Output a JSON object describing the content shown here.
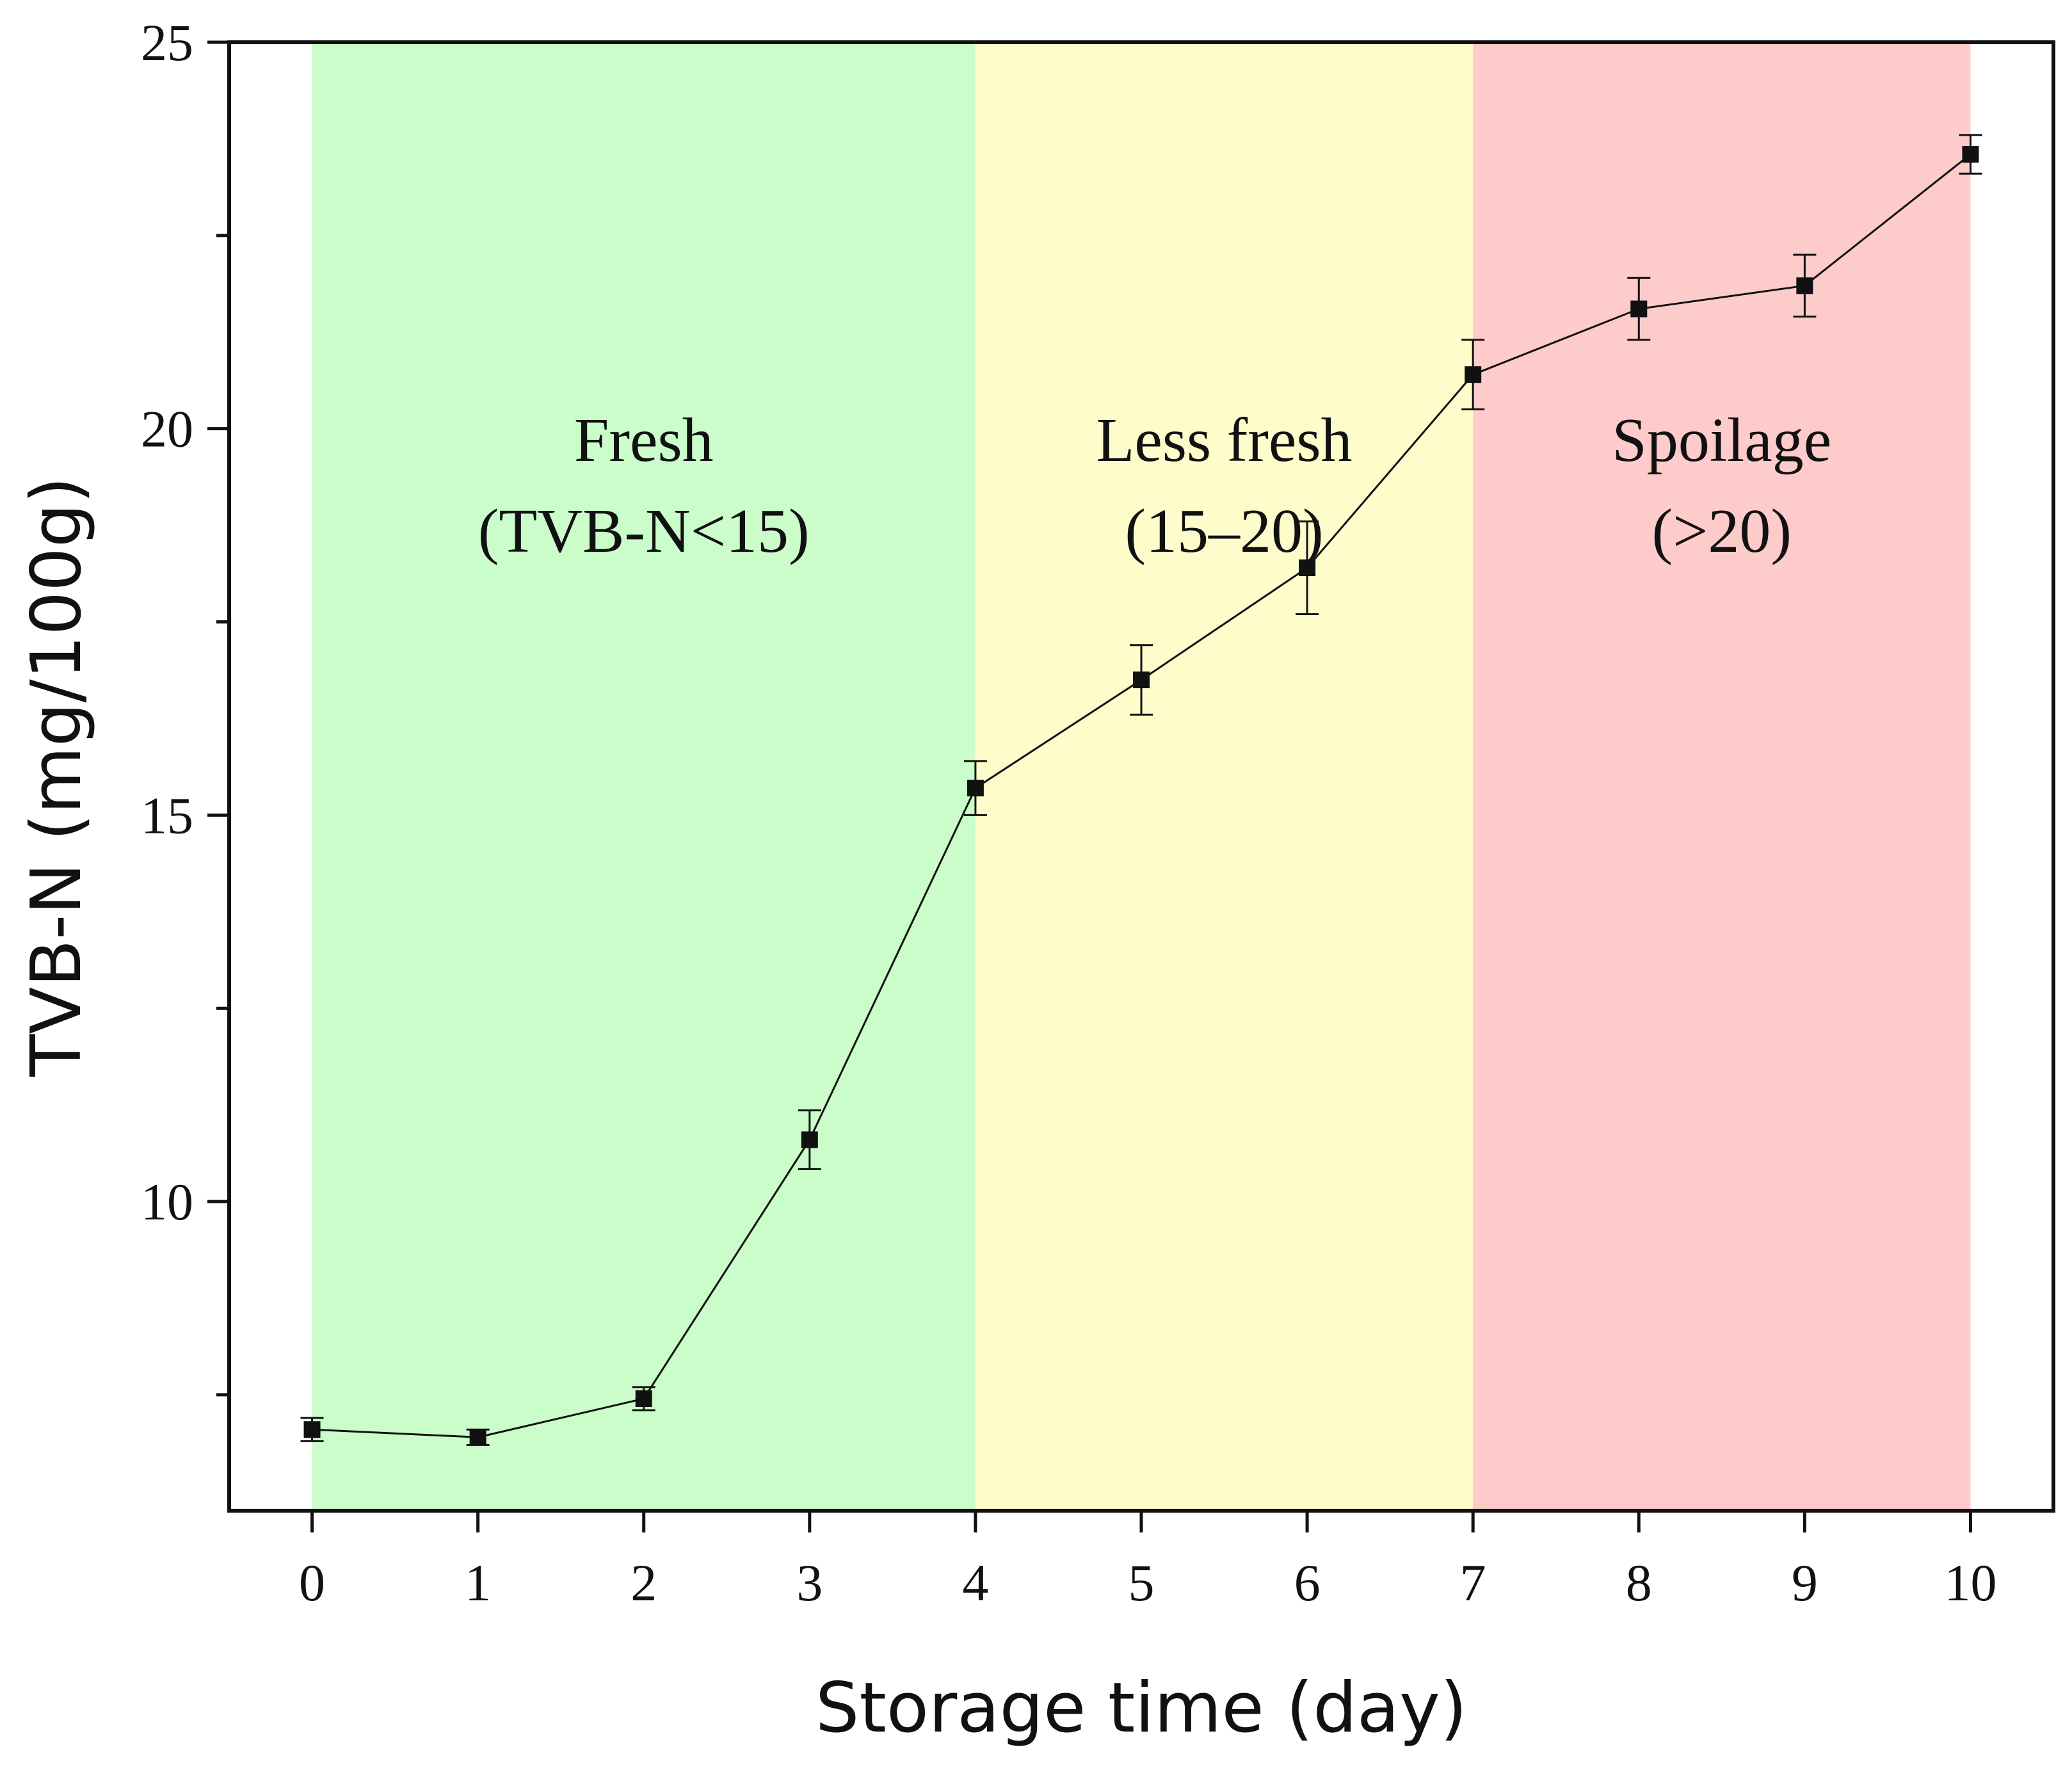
{
  "chart_data": {
    "type": "line",
    "xlabel": "Storage time (day)",
    "ylabel": "TVB-N (mg/100g)",
    "xlim": [
      -0.5,
      10.5
    ],
    "ylim": [
      6,
      25
    ],
    "x_ticks": [
      0,
      1,
      2,
      3,
      4,
      5,
      6,
      7,
      8,
      9,
      10
    ],
    "y_ticks": [
      10,
      15,
      20,
      25
    ],
    "y_minor_ticks": [
      7.5,
      12.5,
      17.5,
      22.5
    ],
    "grid": false,
    "series": [
      {
        "x": [
          0,
          1,
          2,
          3,
          4,
          5,
          6,
          7,
          8,
          9,
          10
        ],
        "y": [
          7.05,
          6.95,
          7.45,
          10.8,
          15.35,
          16.75,
          18.2,
          20.7,
          21.55,
          21.85,
          23.55
        ],
        "error": [
          0.15,
          0.1,
          0.15,
          0.38,
          0.35,
          0.45,
          0.6,
          0.45,
          0.4,
          0.4,
          0.25
        ],
        "marker": "square",
        "color": "#111111"
      }
    ],
    "regions": [
      {
        "label": "Fresh",
        "sublabel": "(TVB-N<15)",
        "x_start": 0,
        "x_end": 4,
        "color": "#cbfdcb"
      },
      {
        "label": "Less fresh",
        "sublabel": "(15–20)",
        "x_start": 4,
        "x_end": 7,
        "color": "#fefccb"
      },
      {
        "label": "Spoilage",
        "sublabel": "(>20)",
        "x_start": 7,
        "x_end": 10,
        "color": "#fecbcb"
      }
    ]
  }
}
